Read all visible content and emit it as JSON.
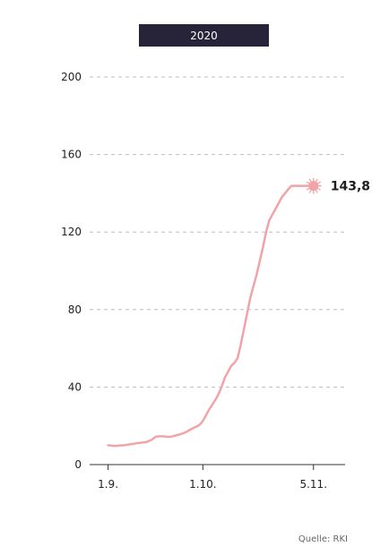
{
  "header": {
    "year_label": "2020"
  },
  "source": {
    "text": "Quelle: RKI"
  },
  "colors": {
    "line": "#f2a3a7",
    "marker": "#f2a3a7",
    "header_bg": "#27243a",
    "grid": "#bdbdbd",
    "axis": "#333333",
    "text": "#222222"
  },
  "chart_data": {
    "type": "line",
    "title": "",
    "xlabel": "",
    "ylabel": "",
    "x_tick_labels": [
      "1.9.",
      "1.10.",
      "5.11."
    ],
    "x_tick_values": [
      1,
      31,
      66
    ],
    "y_ticks": [
      0,
      40,
      80,
      120,
      160,
      200
    ],
    "ylim": [
      0,
      200
    ],
    "xlim": [
      -2,
      76
    ],
    "grid": true,
    "legend": "none",
    "series": [
      {
        "name": "",
        "x": [
          1,
          2,
          3,
          4,
          5,
          6,
          7,
          8,
          9,
          10,
          11,
          12,
          13,
          14,
          15,
          16,
          17,
          18,
          19,
          20,
          21,
          22,
          23,
          24,
          25,
          26,
          27,
          28,
          29,
          30,
          31,
          32,
          33,
          34,
          35,
          36,
          37,
          38,
          39,
          40,
          41,
          42,
          43,
          44,
          45,
          46,
          47,
          48,
          49,
          50,
          51,
          52,
          53,
          54,
          55,
          56,
          57,
          58,
          59,
          60,
          61,
          62,
          63,
          64,
          65,
          66
        ],
        "y": [
          10.0,
          9.8,
          9.6,
          9.7,
          9.9,
          10.0,
          10.2,
          10.5,
          10.7,
          11.0,
          11.2,
          11.4,
          11.6,
          12.2,
          13.0,
          14.3,
          14.6,
          14.6,
          14.5,
          14.3,
          14.4,
          14.8,
          15.3,
          15.7,
          16.3,
          17.1,
          18.0,
          18.9,
          19.6,
          20.6,
          22.5,
          25.5,
          28.5,
          31.0,
          33.5,
          36.5,
          40.5,
          45.0,
          48.0,
          51.0,
          52.5,
          55.0,
          62.0,
          70.0,
          78.0,
          86.0,
          92.0,
          98.0,
          105.0,
          112.0,
          120.0,
          126.0,
          129.0,
          132.0,
          135.0,
          138.0,
          140.0,
          142.0,
          143.8,
          143.8,
          143.8,
          143.8,
          143.8,
          143.8,
          143.8,
          143.8
        ]
      }
    ],
    "highlight": {
      "x": 66,
      "y": 143.8,
      "label": "143,8"
    }
  }
}
